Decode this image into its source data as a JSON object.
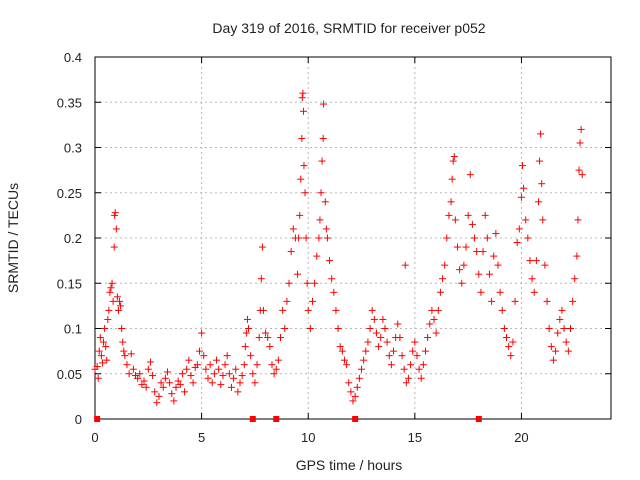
{
  "chart_data": {
    "type": "scatter",
    "title": "Day 319 of 2016, SRMTID for receiver p052",
    "xlabel": "GPS time / hours",
    "ylabel": "SRMTID / TECUs",
    "xlim": [
      0,
      24.2
    ],
    "ylim": [
      0,
      0.4
    ],
    "xticks": [
      0,
      5,
      10,
      15,
      20
    ],
    "xtick_labels": [
      "0",
      "5",
      "10",
      "15",
      "20"
    ],
    "yticks": [
      0,
      0.05,
      0.1,
      0.15,
      0.2,
      0.25,
      0.3,
      0.35,
      0.4
    ],
    "ytick_labels": [
      "0",
      "0.05",
      "0.1",
      "0.15",
      "0.2",
      "0.25",
      "0.3",
      "0.35",
      "0.4"
    ],
    "grid": true,
    "marker": "+",
    "color": "#ff0000",
    "series": [
      {
        "name": "SRMTID",
        "points": [
          [
            0.0,
            0.055
          ],
          [
            0.1,
            0.058
          ],
          [
            0.15,
            0.045
          ],
          [
            0.2,
            0.075
          ],
          [
            0.25,
            0.09
          ],
          [
            0.3,
            0.07
          ],
          [
            0.35,
            0.062
          ],
          [
            0.4,
            0.085
          ],
          [
            0.45,
            0.1
          ],
          [
            0.5,
            0.08
          ],
          [
            0.55,
            0.065
          ],
          [
            0.6,
            0.11
          ],
          [
            0.65,
            0.12
          ],
          [
            0.7,
            0.14
          ],
          [
            0.75,
            0.145
          ],
          [
            0.8,
            0.15
          ],
          [
            0.85,
            0.13
          ],
          [
            0.9,
            0.19
          ],
          [
            0.92,
            0.225
          ],
          [
            0.95,
            0.228
          ],
          [
            1.0,
            0.21
          ],
          [
            1.05,
            0.135
          ],
          [
            1.1,
            0.12
          ],
          [
            1.15,
            0.13
          ],
          [
            1.2,
            0.125
          ],
          [
            1.25,
            0.1
          ],
          [
            1.3,
            0.085
          ],
          [
            1.35,
            0.075
          ],
          [
            1.4,
            0.07
          ],
          [
            1.5,
            0.06
          ],
          [
            1.6,
            0.05
          ],
          [
            1.7,
            0.072
          ],
          [
            1.8,
            0.055
          ],
          [
            1.9,
            0.048
          ],
          [
            2.0,
            0.045
          ],
          [
            2.1,
            0.05
          ],
          [
            2.2,
            0.038
          ],
          [
            2.3,
            0.042
          ],
          [
            2.4,
            0.035
          ],
          [
            2.5,
            0.055
          ],
          [
            2.6,
            0.063
          ],
          [
            2.7,
            0.048
          ],
          [
            2.8,
            0.03
          ],
          [
            2.9,
            0.018
          ],
          [
            3.0,
            0.025
          ],
          [
            3.1,
            0.04
          ],
          [
            3.2,
            0.035
          ],
          [
            3.3,
            0.045
          ],
          [
            3.4,
            0.052
          ],
          [
            3.5,
            0.04
          ],
          [
            3.6,
            0.028
          ],
          [
            3.7,
            0.02
          ],
          [
            3.8,
            0.035
          ],
          [
            3.9,
            0.042
          ],
          [
            4.0,
            0.038
          ],
          [
            4.1,
            0.05
          ],
          [
            4.2,
            0.03
          ],
          [
            4.3,
            0.055
          ],
          [
            4.4,
            0.065
          ],
          [
            4.5,
            0.048
          ],
          [
            4.6,
            0.04
          ],
          [
            4.7,
            0.057
          ],
          [
            4.8,
            0.06
          ],
          [
            4.9,
            0.075
          ],
          [
            5.0,
            0.095
          ],
          [
            5.1,
            0.07
          ],
          [
            5.2,
            0.055
          ],
          [
            5.3,
            0.045
          ],
          [
            5.4,
            0.06
          ],
          [
            5.5,
            0.04
          ],
          [
            5.6,
            0.05
          ],
          [
            5.7,
            0.065
          ],
          [
            5.8,
            0.055
          ],
          [
            5.9,
            0.038
          ],
          [
            6.0,
            0.048
          ],
          [
            6.1,
            0.06
          ],
          [
            6.2,
            0.07
          ],
          [
            6.3,
            0.05
          ],
          [
            6.4,
            0.035
          ],
          [
            6.5,
            0.045
          ],
          [
            6.6,
            0.055
          ],
          [
            6.7,
            0.03
          ],
          [
            6.8,
            0.04
          ],
          [
            6.9,
            0.048
          ],
          [
            7.0,
            0.06
          ],
          [
            7.05,
            0.08
          ],
          [
            7.1,
            0.095
          ],
          [
            7.15,
            0.11
          ],
          [
            7.2,
            0.1
          ],
          [
            7.3,
            0.07
          ],
          [
            7.4,
            0.05
          ],
          [
            7.5,
            0.04
          ],
          [
            7.6,
            0.06
          ],
          [
            7.7,
            0.09
          ],
          [
            7.75,
            0.12
          ],
          [
            7.8,
            0.155
          ],
          [
            7.85,
            0.19
          ],
          [
            7.9,
            0.12
          ],
          [
            8.0,
            0.095
          ],
          [
            8.1,
            0.09
          ],
          [
            8.2,
            0.08
          ],
          [
            8.3,
            0.06
          ],
          [
            8.4,
            0.05
          ],
          [
            8.5,
            0.055
          ],
          [
            8.6,
            0.065
          ],
          [
            8.7,
            0.09
          ],
          [
            8.8,
            0.12
          ],
          [
            8.9,
            0.1
          ],
          [
            9.0,
            0.13
          ],
          [
            9.1,
            0.15
          ],
          [
            9.2,
            0.185
          ],
          [
            9.3,
            0.21
          ],
          [
            9.4,
            0.2
          ],
          [
            9.5,
            0.16
          ],
          [
            9.55,
            0.2
          ],
          [
            9.6,
            0.225
          ],
          [
            9.65,
            0.265
          ],
          [
            9.7,
            0.31
          ],
          [
            9.72,
            0.355
          ],
          [
            9.75,
            0.36
          ],
          [
            9.78,
            0.34
          ],
          [
            9.8,
            0.28
          ],
          [
            9.85,
            0.25
          ],
          [
            9.9,
            0.2
          ],
          [
            9.95,
            0.15
          ],
          [
            10.0,
            0.12
          ],
          [
            10.1,
            0.1
          ],
          [
            10.2,
            0.13
          ],
          [
            10.3,
            0.15
          ],
          [
            10.4,
            0.18
          ],
          [
            10.5,
            0.2
          ],
          [
            10.55,
            0.22
          ],
          [
            10.6,
            0.25
          ],
          [
            10.65,
            0.285
          ],
          [
            10.7,
            0.31
          ],
          [
            10.72,
            0.348
          ],
          [
            10.8,
            0.24
          ],
          [
            10.85,
            0.21
          ],
          [
            10.9,
            0.2
          ],
          [
            11.0,
            0.175
          ],
          [
            11.1,
            0.155
          ],
          [
            11.2,
            0.14
          ],
          [
            11.3,
            0.12
          ],
          [
            11.4,
            0.1
          ],
          [
            11.5,
            0.08
          ],
          [
            11.6,
            0.075
          ],
          [
            11.7,
            0.065
          ],
          [
            11.8,
            0.06
          ],
          [
            11.9,
            0.04
          ],
          [
            12.0,
            0.03
          ],
          [
            12.1,
            0.02
          ],
          [
            12.2,
            0.025
          ],
          [
            12.3,
            0.035
          ],
          [
            12.4,
            0.045
          ],
          [
            12.5,
            0.055
          ],
          [
            12.6,
            0.065
          ],
          [
            12.7,
            0.075
          ],
          [
            12.8,
            0.085
          ],
          [
            12.9,
            0.1
          ],
          [
            13.0,
            0.12
          ],
          [
            13.1,
            0.11
          ],
          [
            13.2,
            0.095
          ],
          [
            13.3,
            0.08
          ],
          [
            13.4,
            0.09
          ],
          [
            13.5,
            0.11
          ],
          [
            13.6,
            0.1
          ],
          [
            13.7,
            0.085
          ],
          [
            13.8,
            0.07
          ],
          [
            13.9,
            0.06
          ],
          [
            14.0,
            0.075
          ],
          [
            14.1,
            0.09
          ],
          [
            14.2,
            0.105
          ],
          [
            14.3,
            0.09
          ],
          [
            14.4,
            0.07
          ],
          [
            14.5,
            0.055
          ],
          [
            14.55,
            0.17
          ],
          [
            14.6,
            0.04
          ],
          [
            14.7,
            0.045
          ],
          [
            14.8,
            0.06
          ],
          [
            14.9,
            0.075
          ],
          [
            15.0,
            0.085
          ],
          [
            15.1,
            0.07
          ],
          [
            15.2,
            0.055
          ],
          [
            15.3,
            0.045
          ],
          [
            15.4,
            0.06
          ],
          [
            15.5,
            0.075
          ],
          [
            15.6,
            0.09
          ],
          [
            15.7,
            0.105
          ],
          [
            15.8,
            0.12
          ],
          [
            15.9,
            0.11
          ],
          [
            16.0,
            0.095
          ],
          [
            16.1,
            0.12
          ],
          [
            16.2,
            0.14
          ],
          [
            16.3,
            0.155
          ],
          [
            16.4,
            0.17
          ],
          [
            16.5,
            0.2
          ],
          [
            16.6,
            0.225
          ],
          [
            16.7,
            0.24
          ],
          [
            16.75,
            0.265
          ],
          [
            16.8,
            0.285
          ],
          [
            16.85,
            0.29
          ],
          [
            16.9,
            0.22
          ],
          [
            17.0,
            0.19
          ],
          [
            17.1,
            0.165
          ],
          [
            17.2,
            0.15
          ],
          [
            17.3,
            0.17
          ],
          [
            17.4,
            0.19
          ],
          [
            17.5,
            0.225
          ],
          [
            17.6,
            0.27
          ],
          [
            17.7,
            0.215
          ],
          [
            17.8,
            0.2
          ],
          [
            17.9,
            0.185
          ],
          [
            18.0,
            0.16
          ],
          [
            18.1,
            0.14
          ],
          [
            18.2,
            0.185
          ],
          [
            18.3,
            0.225
          ],
          [
            18.4,
            0.2
          ],
          [
            18.5,
            0.16
          ],
          [
            18.6,
            0.13
          ],
          [
            18.7,
            0.18
          ],
          [
            18.8,
            0.205
          ],
          [
            18.9,
            0.17
          ],
          [
            19.0,
            0.14
          ],
          [
            19.1,
            0.12
          ],
          [
            19.2,
            0.1
          ],
          [
            19.3,
            0.09
          ],
          [
            19.4,
            0.08
          ],
          [
            19.5,
            0.07
          ],
          [
            19.6,
            0.085
          ],
          [
            19.7,
            0.13
          ],
          [
            19.8,
            0.195
          ],
          [
            19.9,
            0.21
          ],
          [
            20.0,
            0.245
          ],
          [
            20.05,
            0.28
          ],
          [
            20.1,
            0.255
          ],
          [
            20.2,
            0.22
          ],
          [
            20.3,
            0.2
          ],
          [
            20.4,
            0.175
          ],
          [
            20.5,
            0.155
          ],
          [
            20.6,
            0.14
          ],
          [
            20.7,
            0.175
          ],
          [
            20.8,
            0.24
          ],
          [
            20.85,
            0.285
          ],
          [
            20.9,
            0.315
          ],
          [
            20.95,
            0.26
          ],
          [
            21.0,
            0.22
          ],
          [
            21.1,
            0.17
          ],
          [
            21.2,
            0.13
          ],
          [
            21.3,
            0.1
          ],
          [
            21.4,
            0.08
          ],
          [
            21.5,
            0.065
          ],
          [
            21.6,
            0.075
          ],
          [
            21.7,
            0.095
          ],
          [
            21.8,
            0.11
          ],
          [
            21.9,
            0.12
          ],
          [
            22.0,
            0.1
          ],
          [
            22.1,
            0.085
          ],
          [
            22.2,
            0.075
          ],
          [
            22.3,
            0.1
          ],
          [
            22.4,
            0.13
          ],
          [
            22.5,
            0.155
          ],
          [
            22.6,
            0.18
          ],
          [
            22.65,
            0.22
          ],
          [
            22.7,
            0.275
          ],
          [
            22.75,
            0.305
          ],
          [
            22.8,
            0.32
          ],
          [
            22.85,
            0.27
          ]
        ]
      }
    ],
    "gap_markers_x": [
      0.1,
      7.4,
      8.5,
      12.2,
      18.0
    ]
  }
}
